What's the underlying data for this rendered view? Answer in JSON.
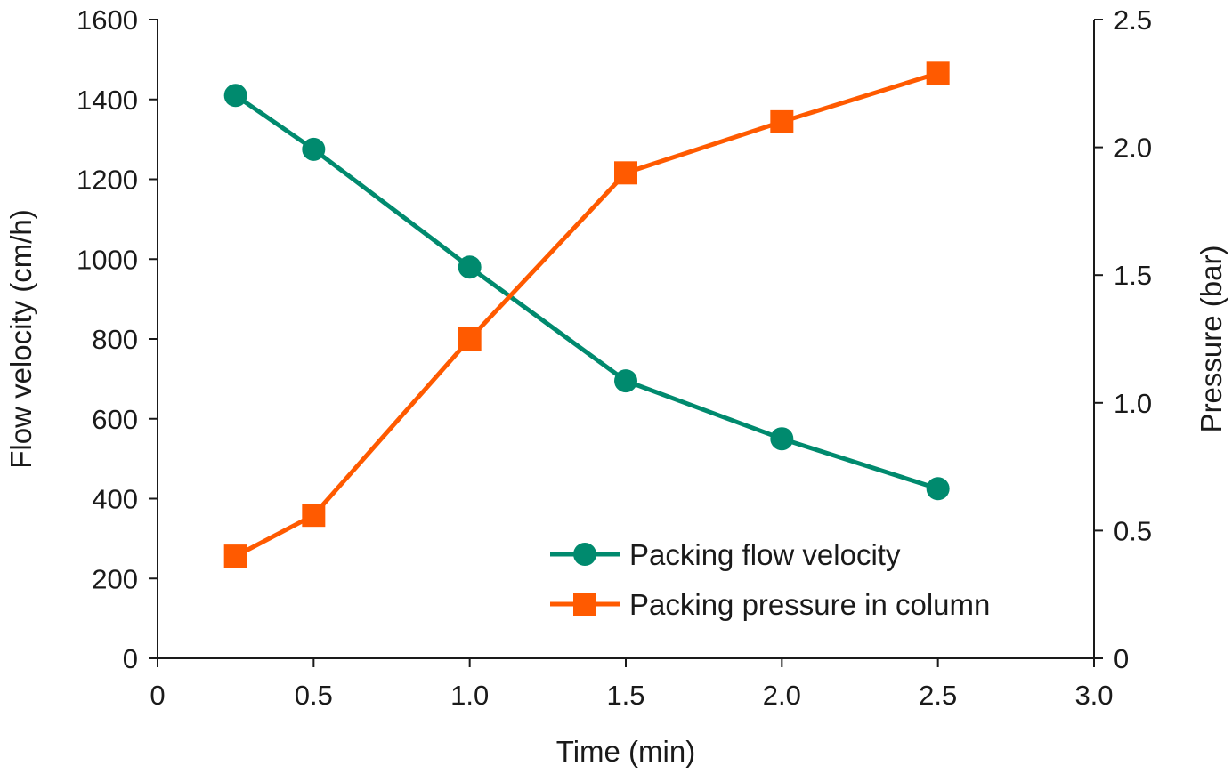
{
  "chart_data": {
    "type": "line",
    "xlabel": "Time (min)",
    "ylabel": "Flow velocity (cm/h)",
    "y2label": "Pressure (bar)",
    "xlim": [
      0,
      3.0
    ],
    "ylim": [
      0,
      1600
    ],
    "y2lim": [
      0,
      2.5
    ],
    "x_ticks": [
      "0",
      "0.5",
      "1.0",
      "1.5",
      "2.0",
      "2.5",
      "3.0"
    ],
    "y_ticks": [
      "0",
      "200",
      "400",
      "600",
      "800",
      "1000",
      "1200",
      "1400",
      "1600"
    ],
    "y2_ticks": [
      "0",
      "0.5",
      "1.0",
      "1.5",
      "2.0",
      "2.5"
    ],
    "grid": false,
    "legend_position": "bottom-right",
    "series": [
      {
        "name": "Packing flow velocity",
        "axis": "left",
        "marker": "circle",
        "color": "#008a6e",
        "x": [
          0.25,
          0.5,
          1.0,
          1.5,
          2.0,
          2.5
        ],
        "values": [
          1410,
          1275,
          980,
          695,
          550,
          425
        ]
      },
      {
        "name": "Packing pressure in column",
        "axis": "right",
        "marker": "square",
        "color": "#ff5a00",
        "x": [
          0.25,
          0.5,
          1.0,
          1.5,
          2.0,
          2.5
        ],
        "values": [
          0.4,
          0.56,
          1.25,
          1.9,
          2.1,
          2.29
        ]
      }
    ]
  }
}
